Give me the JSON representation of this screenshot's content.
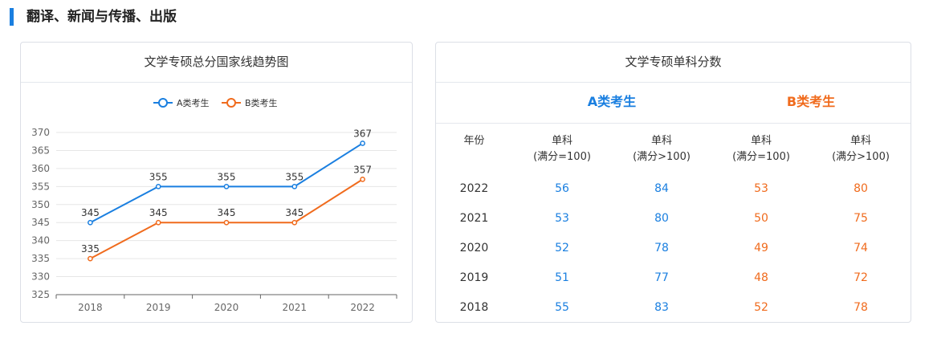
{
  "section": {
    "title": "翻译、新闻与传播、出版"
  },
  "colors": {
    "accent": "#1a7fe0",
    "series_a": "#1a7fe0",
    "series_b": "#f06b1d"
  },
  "chart_card": {
    "title": "文学专硕总分国家线趋势图"
  },
  "chart_data": {
    "type": "line",
    "title": "文学专硕总分国家线趋势图",
    "categories": [
      "2018",
      "2019",
      "2020",
      "2021",
      "2022"
    ],
    "series": [
      {
        "name": "A类考生",
        "values": [
          345,
          355,
          355,
          355,
          367
        ]
      },
      {
        "name": "B类考生",
        "values": [
          335,
          345,
          345,
          345,
          357
        ]
      }
    ],
    "ylim": [
      325,
      370
    ],
    "yticks": [
      "325",
      "330",
      "335",
      "340",
      "345",
      "350",
      "355",
      "360",
      "365",
      "370"
    ],
    "xlabel": "",
    "ylabel": "",
    "grid": true,
    "legend": "top-center"
  },
  "table_card": {
    "title": "文学专硕单科分数",
    "group_a": "A类考生",
    "group_b": "B类考生",
    "headers": {
      "year": "年份",
      "col1_line1": "单科",
      "col1_line2": "(满分=100)",
      "col2_line1": "单科",
      "col2_line2": "(满分>100)",
      "col3_line1": "单科",
      "col3_line2": "(满分=100)",
      "col4_line1": "单科",
      "col4_line2": "(满分>100)"
    },
    "rows": [
      {
        "year": "2022",
        "a1": "56",
        "a2": "84",
        "b1": "53",
        "b2": "80"
      },
      {
        "year": "2021",
        "a1": "53",
        "a2": "80",
        "b1": "50",
        "b2": "75"
      },
      {
        "year": "2020",
        "a1": "52",
        "a2": "78",
        "b1": "49",
        "b2": "74"
      },
      {
        "year": "2019",
        "a1": "51",
        "a2": "77",
        "b1": "48",
        "b2": "72"
      },
      {
        "year": "2018",
        "a1": "55",
        "a2": "83",
        "b1": "52",
        "b2": "78"
      }
    ]
  }
}
